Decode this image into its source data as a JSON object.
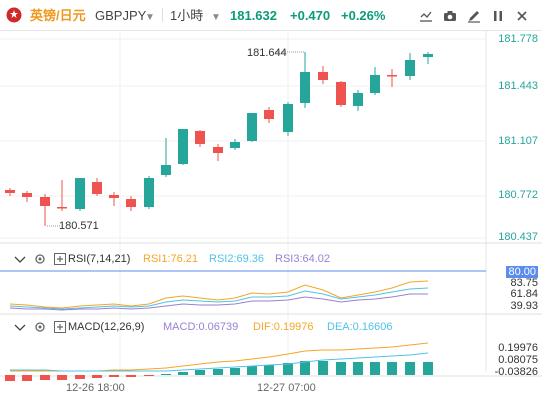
{
  "header": {
    "symbol_cn": "英镑/日元",
    "symbol": "GBPJPY",
    "interval": "1小時",
    "price": "181.632",
    "change": "+0.470",
    "change_pct": "+0.26%"
  },
  "toolbar": {
    "icons": [
      "crosshair-chart-icon",
      "camera-icon",
      "pen-edit-icon",
      "pause-icon",
      "close-icon"
    ]
  },
  "main_chart": {
    "price_ticks": [
      "181.778",
      "181.443",
      "181.107",
      "180.772",
      "180.437"
    ],
    "high_label": "181.644",
    "low_label": "180.571"
  },
  "rsi": {
    "title": "RSI(7,14,21)",
    "rsi1": "RSI1:76.21",
    "rsi2": "RSI2:69.36",
    "rsi3": "RSI3:64.02",
    "ticks": [
      "80.00",
      "83.75",
      "61.84",
      "39.93"
    ]
  },
  "macd": {
    "title": "MACD(12,26,9)",
    "macd": "MACD:0.06739",
    "dif": "DIF:0.19976",
    "dea": "DEA:0.16606",
    "ticks": [
      "0.19976",
      "0.08075",
      "-0.03826"
    ]
  },
  "time_axis": [
    "12-26 18:00",
    "12-27 07:00"
  ],
  "colors": {
    "up": "#26a69a",
    "down": "#ef5350",
    "rsi1": "#f5a623",
    "rsi2": "#4fc3e8",
    "rsi3": "#9b7fd4",
    "dif": "#f5a623",
    "dea": "#4fc3e8"
  }
}
